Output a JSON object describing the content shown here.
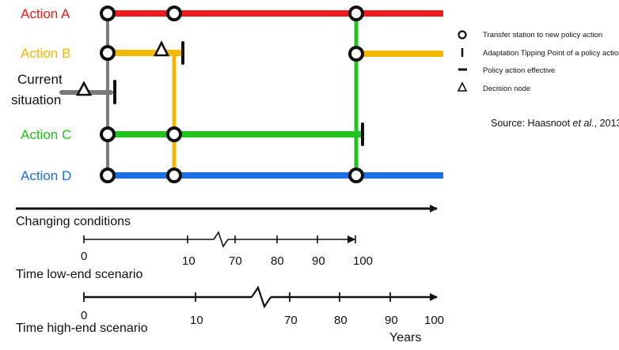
{
  "colors": {
    "action_a": "#ee1c1c",
    "action_b": "#f5b800",
    "action_c": "#22c31f",
    "action_d": "#1e6ee6",
    "current": "#7a7a7a",
    "ink": "#111111"
  },
  "actions": {
    "a": "Action A",
    "b": "Action B",
    "c": "Action C",
    "d": "Action D",
    "current_line1": "Current",
    "current_line2": "situation"
  },
  "legend": {
    "transfer": "Transfer station to new policy action",
    "tipping": "Adaptation Tipping Point of a policy action (Terminal)",
    "effective": "Policy action effective",
    "decision": "Decision node",
    "icons": [
      "transfer-station-icon",
      "tipping-point-icon",
      "policy-effective-icon",
      "decision-node-icon"
    ]
  },
  "source": {
    "prefix": "Source: Haasnoot ",
    "italic": "et al.",
    "suffix": ", 2013"
  },
  "axes": {
    "changing_conditions": "Changing conditions",
    "low_end": {
      "label": "Time low-end scenario",
      "ticks": [
        "0",
        "10",
        "70",
        "80",
        "90",
        "100"
      ]
    },
    "high_end": {
      "label": "Time high-end scenario",
      "ticks": [
        "0",
        "10",
        "70",
        "80",
        "90",
        "100"
      ]
    },
    "years": "Years"
  }
}
